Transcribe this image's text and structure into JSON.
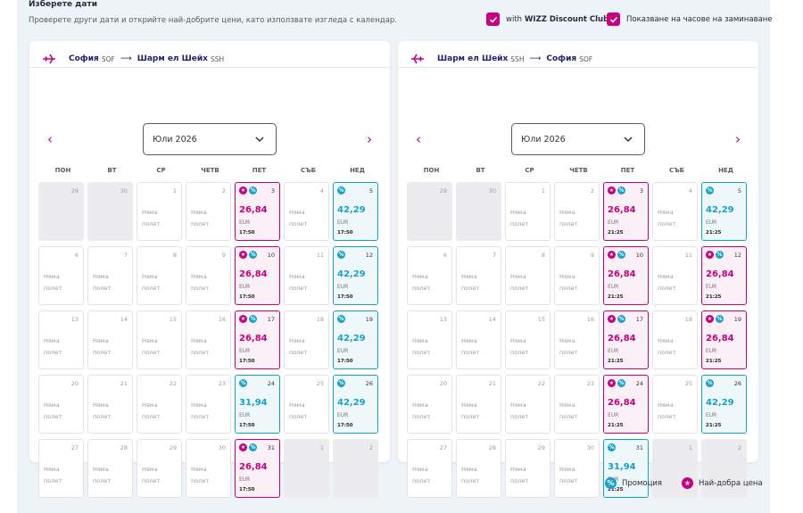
{
  "header": {
    "title": "Изберете дати",
    "subtitle": "Проверете други дати и открийте най-добрите цени, като използвате изгледа с календар.",
    "opt_discount_pre": "with",
    "opt_discount_brand": "WIZZ Discount Club",
    "opt_times": "Показване на часове на заминаване"
  },
  "colors": {
    "accent": "#c6007e",
    "promo": "#17a1c8",
    "navy": "#1f1f6b"
  },
  "weekdays": [
    "ПОН",
    "ВТ",
    "СР",
    "ЧЕТВ",
    "ПЕТ",
    "СЪБ",
    "НЕД"
  ],
  "no_flight_line1": "Няма",
  "no_flight_line2": "полет",
  "calendars": [
    {
      "from": "София",
      "from_code": "SOF",
      "to": "Шарм ел Шейх",
      "to_code": "SSH",
      "month": "Юли 2026",
      "days": [
        {
          "n": "29",
          "s": "off"
        },
        {
          "n": "30",
          "s": "off"
        },
        {
          "n": "1",
          "s": "nf"
        },
        {
          "n": "2",
          "s": "nf"
        },
        {
          "n": "3",
          "s": "best",
          "p": "26,84",
          "c": "EUR",
          "t": "17:50",
          "b": [
            "star",
            "pct"
          ]
        },
        {
          "n": "4",
          "s": "nf"
        },
        {
          "n": "5",
          "s": "promo",
          "p": "42,29",
          "c": "EUR",
          "t": "17:50",
          "b": [
            "pct"
          ]
        },
        {
          "n": "6",
          "s": "nf"
        },
        {
          "n": "7",
          "s": "nf"
        },
        {
          "n": "8",
          "s": "nf"
        },
        {
          "n": "9",
          "s": "nf"
        },
        {
          "n": "10",
          "s": "best",
          "p": "26,84",
          "c": "EUR",
          "t": "17:50",
          "b": [
            "star",
            "pct"
          ]
        },
        {
          "n": "11",
          "s": "nf"
        },
        {
          "n": "12",
          "s": "promo",
          "p": "42,29",
          "c": "EUR",
          "t": "17:50",
          "b": [
            "pct"
          ]
        },
        {
          "n": "13",
          "s": "nf"
        },
        {
          "n": "14",
          "s": "nf"
        },
        {
          "n": "15",
          "s": "nf"
        },
        {
          "n": "16",
          "s": "nf"
        },
        {
          "n": "17",
          "s": "best",
          "p": "26,84",
          "c": "EUR",
          "t": "17:50",
          "b": [
            "star",
            "pct"
          ]
        },
        {
          "n": "18",
          "s": "nf"
        },
        {
          "n": "19",
          "s": "promo",
          "p": "42,29",
          "c": "EUR",
          "t": "17:50",
          "b": [
            "pct"
          ]
        },
        {
          "n": "20",
          "s": "nf"
        },
        {
          "n": "21",
          "s": "nf"
        },
        {
          "n": "22",
          "s": "nf"
        },
        {
          "n": "23",
          "s": "nf"
        },
        {
          "n": "24",
          "s": "promo",
          "p": "31,94",
          "c": "EUR",
          "t": "17:50",
          "b": [
            "pct"
          ]
        },
        {
          "n": "25",
          "s": "nf"
        },
        {
          "n": "26",
          "s": "promo",
          "p": "42,29",
          "c": "EUR",
          "t": "17:50",
          "b": [
            "pct"
          ]
        },
        {
          "n": "27",
          "s": "nf"
        },
        {
          "n": "28",
          "s": "nf"
        },
        {
          "n": "29",
          "s": "nf"
        },
        {
          "n": "30",
          "s": "nf"
        },
        {
          "n": "31",
          "s": "best",
          "p": "26,84",
          "c": "EUR",
          "t": "17:50",
          "b": [
            "star",
            "pct"
          ]
        },
        {
          "n": "1",
          "s": "off"
        },
        {
          "n": "2",
          "s": "off"
        }
      ]
    },
    {
      "from": "Шарм ел Шейх",
      "from_code": "SSH",
      "to": "София",
      "to_code": "SOF",
      "month": "Юли 2026",
      "days": [
        {
          "n": "29",
          "s": "off"
        },
        {
          "n": "30",
          "s": "off"
        },
        {
          "n": "1",
          "s": "nf"
        },
        {
          "n": "2",
          "s": "nf"
        },
        {
          "n": "3",
          "s": "best",
          "p": "26,84",
          "c": "EUR",
          "t": "21:25",
          "b": [
            "star",
            "pct"
          ]
        },
        {
          "n": "4",
          "s": "nf"
        },
        {
          "n": "5",
          "s": "promo",
          "p": "42,29",
          "c": "EUR",
          "t": "21:25",
          "b": [
            "pct"
          ]
        },
        {
          "n": "6",
          "s": "nf"
        },
        {
          "n": "7",
          "s": "nf"
        },
        {
          "n": "8",
          "s": "nf"
        },
        {
          "n": "9",
          "s": "nf"
        },
        {
          "n": "10",
          "s": "best",
          "p": "26,84",
          "c": "EUR",
          "t": "21:25",
          "b": [
            "star",
            "pct"
          ]
        },
        {
          "n": "11",
          "s": "nf"
        },
        {
          "n": "12",
          "s": "best",
          "p": "26,84",
          "c": "EUR",
          "t": "21:25",
          "b": [
            "star",
            "pct"
          ]
        },
        {
          "n": "13",
          "s": "nf"
        },
        {
          "n": "14",
          "s": "nf"
        },
        {
          "n": "15",
          "s": "nf"
        },
        {
          "n": "16",
          "s": "nf"
        },
        {
          "n": "17",
          "s": "best",
          "p": "26,84",
          "c": "EUR",
          "t": "21:25",
          "b": [
            "star",
            "pct"
          ]
        },
        {
          "n": "18",
          "s": "nf"
        },
        {
          "n": "19",
          "s": "best",
          "p": "26,84",
          "c": "EUR",
          "t": "21:25",
          "b": [
            "star",
            "pct"
          ]
        },
        {
          "n": "20",
          "s": "nf"
        },
        {
          "n": "21",
          "s": "nf"
        },
        {
          "n": "22",
          "s": "nf"
        },
        {
          "n": "23",
          "s": "nf"
        },
        {
          "n": "24",
          "s": "best",
          "p": "26,84",
          "c": "EUR",
          "t": "21:25",
          "b": [
            "star",
            "pct"
          ]
        },
        {
          "n": "25",
          "s": "nf"
        },
        {
          "n": "26",
          "s": "promo",
          "p": "42,29",
          "c": "EUR",
          "t": "21:25",
          "b": [
            "pct"
          ]
        },
        {
          "n": "27",
          "s": "nf"
        },
        {
          "n": "28",
          "s": "nf"
        },
        {
          "n": "29",
          "s": "nf"
        },
        {
          "n": "30",
          "s": "nf"
        },
        {
          "n": "31",
          "s": "promo",
          "p": "31,94",
          "c": "EUR",
          "t": "21:25",
          "b": [
            "pct"
          ]
        },
        {
          "n": "1",
          "s": "off"
        },
        {
          "n": "2",
          "s": "off"
        }
      ]
    }
  ],
  "legend": {
    "promo": "Промоция",
    "best": "Най-добра цена"
  }
}
